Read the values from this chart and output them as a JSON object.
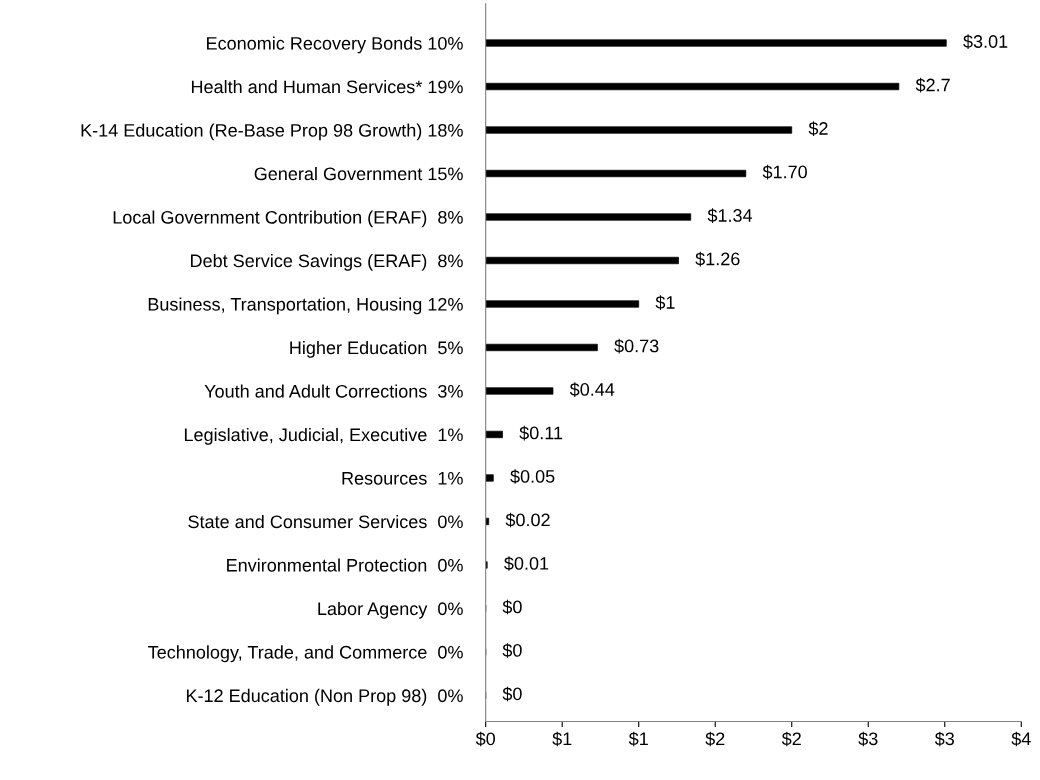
{
  "chart_data": {
    "type": "bar",
    "orientation": "horizontal",
    "categories": [
      "Economic Recovery Bonds 10%",
      "Health and Human Services* 19%",
      "K-14 Education (Re-Base Prop 98 Growth) 18%",
      "General Government 15%",
      "Local Government Contribution (ERAF)  8%",
      "Debt Service Savings (ERAF)  8%",
      "Business, Transportation, Housing 12%",
      "Higher Education  5%",
      "Youth and Adult Corrections  3%",
      "Legislative, Judicial, Executive  1%",
      "Resources  1%",
      "State and Consumer Services  0%",
      "Environmental Protection  0%",
      "Labor Agency  0%",
      "Technology, Trade, and Commerce  0%",
      "K-12 Education (Non Prop 98)  0%"
    ],
    "values": [
      3.01,
      2.7,
      2.0,
      1.7,
      1.34,
      1.26,
      1.0,
      0.73,
      0.44,
      0.11,
      0.05,
      0.02,
      0.01,
      0,
      0,
      0
    ],
    "value_labels": [
      "$3.01",
      "$2.7",
      "$2",
      "$1.70",
      "$1.34",
      "$1.26",
      "$1",
      "$0.73",
      "$0.44",
      "$0.11",
      "$0.05",
      "$0.02",
      "$0.01",
      "$0",
      "$0",
      "$0"
    ],
    "color": "#000000",
    "xlim": [
      0,
      3.5
    ],
    "xticks": [
      {
        "value": 0,
        "label": "$0"
      },
      {
        "value": 0.5,
        "label": "$1"
      },
      {
        "value": 1,
        "label": "$1"
      },
      {
        "value": 1.5,
        "label": "$2"
      },
      {
        "value": 2,
        "label": "$2"
      },
      {
        "value": 2.5,
        "label": "$3"
      },
      {
        "value": 3,
        "label": "$3"
      },
      {
        "value": 3.5,
        "label": "$4"
      }
    ],
    "grid": false,
    "legend": false
  }
}
